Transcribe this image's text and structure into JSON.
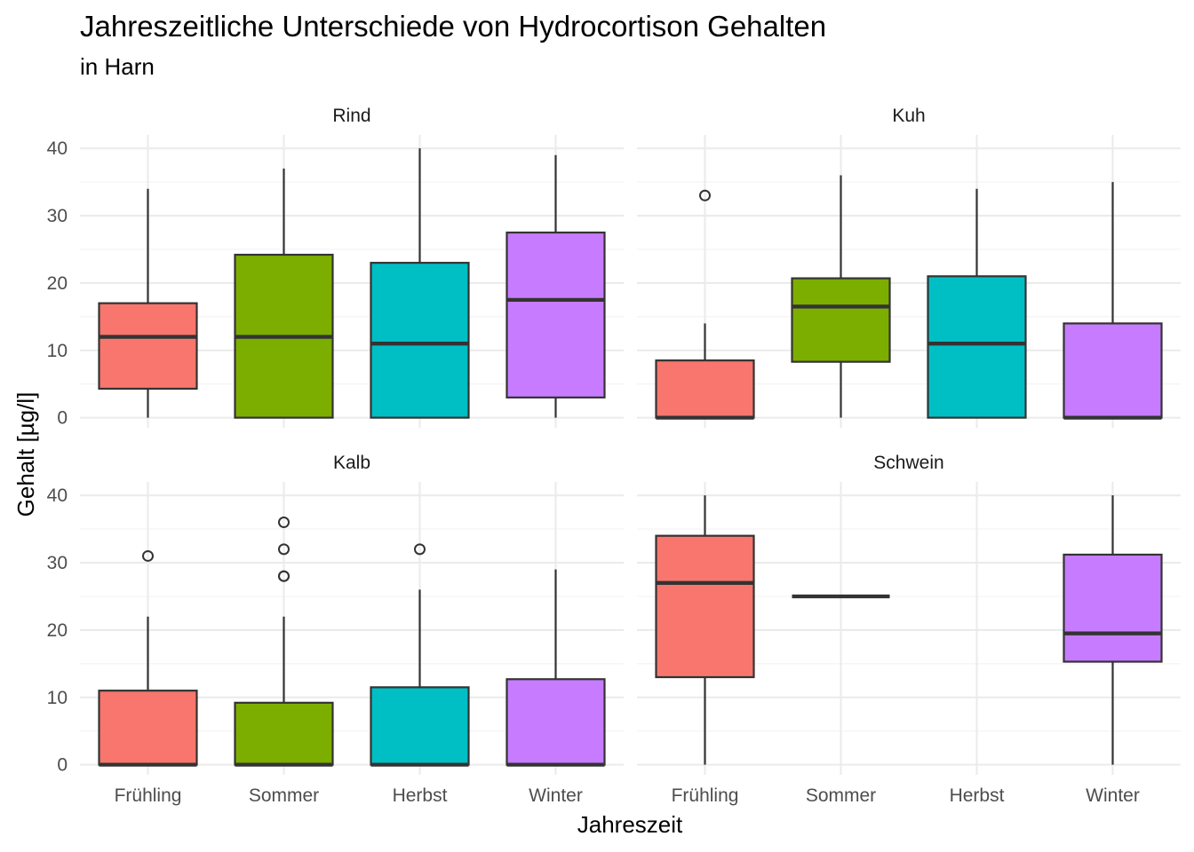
{
  "chart_data": {
    "type": "boxplot",
    "title": "Jahreszeitliche Unterschiede von Hydrocortison Gehalten",
    "subtitle": "in Harn",
    "xlabel": "Jahreszeit",
    "ylabel": "Gehalt [µg/l]",
    "categories": [
      "Frühling",
      "Sommer",
      "Herbst",
      "Winter"
    ],
    "ylim": [
      -1.5,
      42
    ],
    "yticks": [
      0,
      10,
      20,
      30,
      40
    ],
    "colors": {
      "Frühling": "#F8766D",
      "Sommer": "#7CAE00",
      "Herbst": "#00BFC4",
      "Winter": "#C77CFF"
    },
    "grid": true,
    "legend": "none",
    "panels": [
      {
        "name": "Rind",
        "boxes": [
          {
            "category": "Frühling",
            "min": 0,
            "q1": 4.3,
            "median": 12,
            "q3": 17,
            "max": 34,
            "outliers": []
          },
          {
            "category": "Sommer",
            "min": 0,
            "q1": 0,
            "median": 12,
            "q3": 24.2,
            "max": 37,
            "outliers": []
          },
          {
            "category": "Herbst",
            "min": 0,
            "q1": 0,
            "median": 11,
            "q3": 23,
            "max": 40,
            "outliers": []
          },
          {
            "category": "Winter",
            "min": 0,
            "q1": 3,
            "median": 17.5,
            "q3": 27.5,
            "max": 39,
            "outliers": []
          }
        ]
      },
      {
        "name": "Kuh",
        "boxes": [
          {
            "category": "Frühling",
            "min": 0,
            "q1": 0,
            "median": 0,
            "q3": 8.5,
            "max": 14,
            "outliers": [
              33
            ]
          },
          {
            "category": "Sommer",
            "min": 0,
            "q1": 8.3,
            "median": 16.5,
            "q3": 20.7,
            "max": 36,
            "outliers": []
          },
          {
            "category": "Herbst",
            "min": 0,
            "q1": 0,
            "median": 11,
            "q3": 21,
            "max": 34,
            "outliers": []
          },
          {
            "category": "Winter",
            "min": 0,
            "q1": 0,
            "median": 0,
            "q3": 14,
            "max": 35,
            "outliers": []
          }
        ]
      },
      {
        "name": "Kalb",
        "boxes": [
          {
            "category": "Frühling",
            "min": 0,
            "q1": 0,
            "median": 0,
            "q3": 11,
            "max": 22,
            "outliers": [
              31
            ]
          },
          {
            "category": "Sommer",
            "min": 0,
            "q1": 0,
            "median": 0,
            "q3": 9.2,
            "max": 22,
            "outliers": [
              28,
              28,
              32,
              36
            ]
          },
          {
            "category": "Herbst",
            "min": 0,
            "q1": 0,
            "median": 0,
            "q3": 11.5,
            "max": 26,
            "outliers": [
              32
            ]
          },
          {
            "category": "Winter",
            "min": 0,
            "q1": 0,
            "median": 0,
            "q3": 12.7,
            "max": 29,
            "outliers": []
          }
        ]
      },
      {
        "name": "Schwein",
        "boxes": [
          {
            "category": "Frühling",
            "min": 0,
            "q1": 13,
            "median": 27,
            "q3": 34,
            "max": 40,
            "outliers": []
          },
          {
            "category": "Sommer",
            "min": 25,
            "q1": 25,
            "median": 25,
            "q3": 25,
            "max": 25,
            "outliers": []
          },
          {
            "category": "Winter",
            "min": 0,
            "q1": 15.3,
            "median": 19.5,
            "q3": 31.2,
            "max": 40,
            "outliers": []
          }
        ]
      }
    ]
  }
}
